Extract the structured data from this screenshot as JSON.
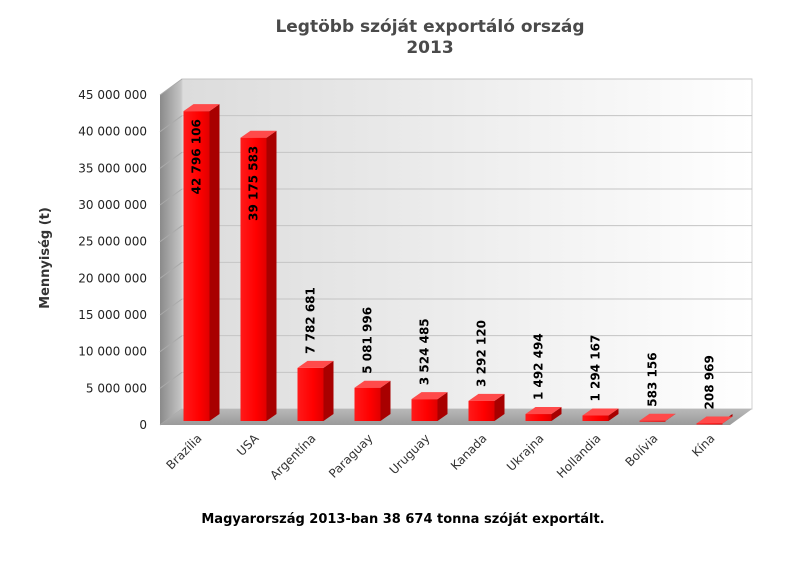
{
  "chart_data": {
    "type": "bar",
    "title": "Legtöbb szóját exportáló ország",
    "subtitle": "2013",
    "ylabel": "Mennyiség (t)",
    "xlabel": "",
    "ylim": [
      0,
      45000000
    ],
    "yticks": [
      0,
      5000000,
      10000000,
      15000000,
      20000000,
      25000000,
      30000000,
      35000000,
      40000000,
      45000000
    ],
    "ytick_labels": [
      "0",
      "5 000 000",
      "10 000 000",
      "15 000 000",
      "20 000 000",
      "25 000 000",
      "30 000 000",
      "35 000 000",
      "40 000 000",
      "45 000 000"
    ],
    "categories": [
      "Brazília",
      "USA",
      "Argentína",
      "Paraguay",
      "Uruguay",
      "Kanada",
      "Ukrajna",
      "Hollandia",
      "Bolívia",
      "Kína"
    ],
    "values": [
      42796106,
      39175583,
      7782681,
      5081996,
      3524485,
      3292120,
      1492494,
      1294167,
      583156,
      208969
    ],
    "value_labels": [
      "42 796 106",
      "39 175 583",
      "7 782 681",
      "5 081 996",
      "3 524 485",
      "3 292 120",
      "1 492 494",
      "1 294 167",
      "583 156",
      "208 969"
    ],
    "grid": true,
    "legend": "none",
    "bar_color": "#ff0000",
    "style": "3d"
  },
  "footnote": {
    "text": "Magyarország 2013-ban 38 674 tonna szóját exportált."
  }
}
